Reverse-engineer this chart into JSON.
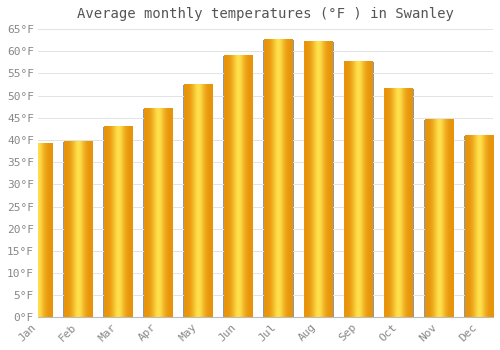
{
  "title": "Average monthly temperatures (°F ) in Swanley",
  "months": [
    "Jan",
    "Feb",
    "Mar",
    "Apr",
    "May",
    "Jun",
    "Jul",
    "Aug",
    "Sep",
    "Oct",
    "Nov",
    "Dec"
  ],
  "values": [
    39,
    39.5,
    43,
    47,
    52.5,
    59,
    62.5,
    62,
    57.5,
    51.5,
    44.5,
    41
  ],
  "bar_color_center": "#FFD966",
  "bar_color_edge_dark": "#E8940A",
  "bar_border_color": "#8899AA",
  "background_color": "#FFFFFF",
  "grid_color": "#E0E4E8",
  "text_color": "#888888",
  "title_color": "#555555",
  "ylim": [
    0,
    65
  ],
  "yticks": [
    0,
    5,
    10,
    15,
    20,
    25,
    30,
    35,
    40,
    45,
    50,
    55,
    60,
    65
  ],
  "ylabel_suffix": "°F",
  "title_fontsize": 10,
  "tick_fontsize": 8,
  "bar_width": 0.75
}
